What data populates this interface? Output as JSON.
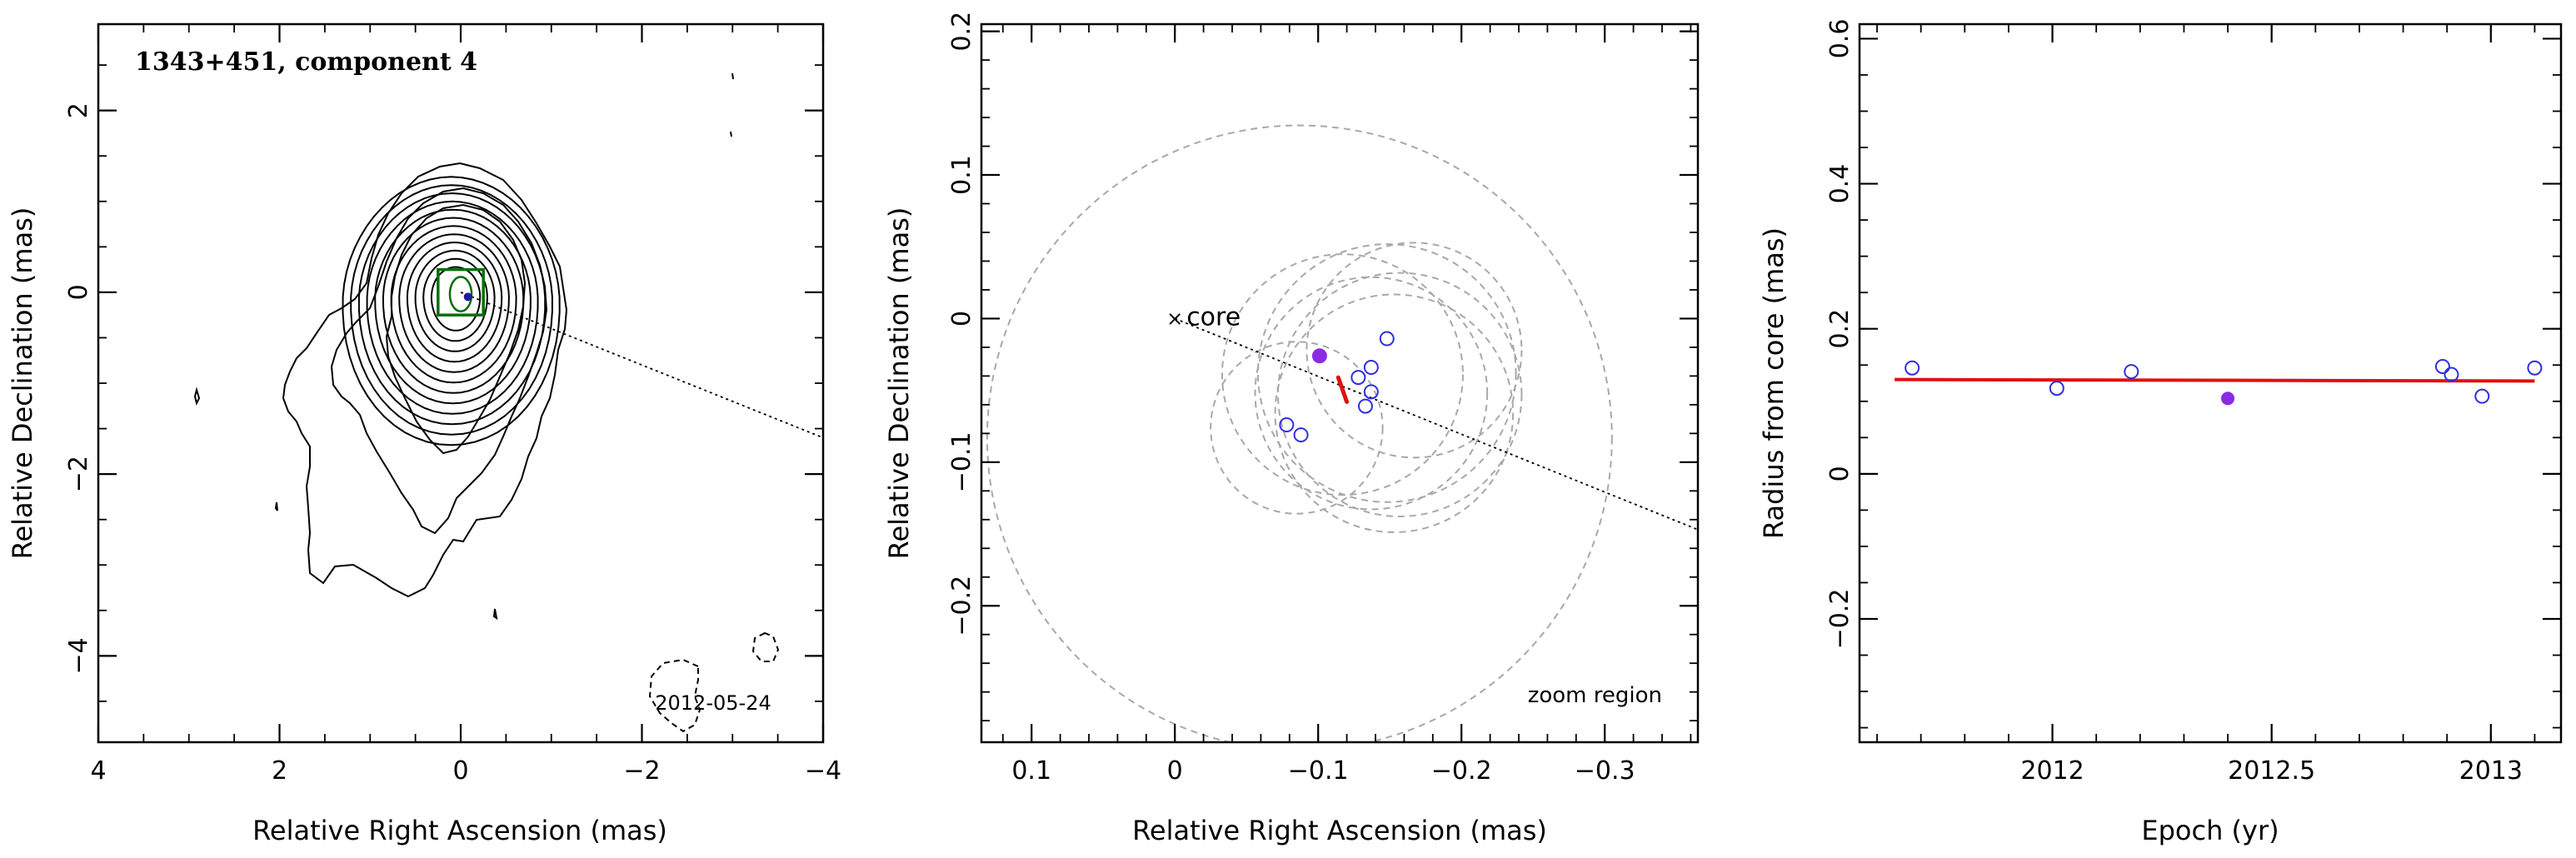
{
  "chart_data": [
    {
      "type": "contour",
      "title": "1343+451, component 4",
      "date_label": "2012-05-24",
      "xlabel": "Relative Right Ascension (mas)",
      "ylabel": "Relative Declination (mas)",
      "xlim": [
        4,
        -4
      ],
      "ylim": [
        -4.95,
        2.95
      ],
      "xticks": [
        4,
        2,
        0,
        -2,
        -4
      ],
      "yticks": [
        2,
        0,
        -2,
        -4
      ],
      "contour_levels": 12,
      "component": {
        "x": -0.08,
        "y": -0.05
      },
      "zoom_box": {
        "x": [
          0.25,
          -0.25
        ],
        "y": [
          0.25,
          -0.25
        ]
      },
      "trajectory_line": {
        "from": [
          0.0,
          0.0
        ],
        "to": [
          -4.0,
          -1.6
        ]
      }
    },
    {
      "type": "scatter",
      "xlabel": "Relative Right Ascension (mas)",
      "ylabel": "Relative Declination (mas)",
      "xlim": [
        0.135,
        -0.365
      ],
      "ylim": [
        -0.295,
        0.205
      ],
      "xticks": [
        0.1,
        0,
        -0.1,
        -0.2,
        -0.3
      ],
      "yticks": [
        0.2,
        0.1,
        0,
        -0.1,
        -0.2
      ],
      "annotation": "zoom region",
      "core_label": "core",
      "core": {
        "x": 0.0,
        "y": 0.0
      },
      "points_open": [
        {
          "x": -0.148,
          "y": -0.014
        },
        {
          "x": -0.137,
          "y": -0.034
        },
        {
          "x": -0.128,
          "y": -0.041
        },
        {
          "x": -0.137,
          "y": -0.051
        },
        {
          "x": -0.133,
          "y": -0.061
        },
        {
          "x": -0.078,
          "y": -0.074
        },
        {
          "x": -0.088,
          "y": -0.081
        }
      ],
      "point_highlight": {
        "x": -0.101,
        "y": -0.026
      },
      "circles": [
        {
          "cx": -0.087,
          "cy": -0.083,
          "r": 0.218
        },
        {
          "cx": -0.117,
          "cy": -0.039,
          "r": 0.084
        },
        {
          "cx": -0.167,
          "cy": -0.022,
          "r": 0.075
        },
        {
          "cx": -0.148,
          "cy": -0.038,
          "r": 0.09
        },
        {
          "cx": -0.157,
          "cy": -0.053,
          "r": 0.085
        },
        {
          "cx": -0.153,
          "cy": -0.066,
          "r": 0.083
        },
        {
          "cx": -0.137,
          "cy": -0.052,
          "r": 0.081
        },
        {
          "cx": -0.085,
          "cy": -0.076,
          "r": 0.06
        }
      ],
      "red_segment": {
        "from": [
          -0.114,
          -0.041
        ],
        "to": [
          -0.12,
          -0.058
        ]
      },
      "trajectory_line": {
        "from": [
          0.0,
          0.0
        ],
        "to": [
          -0.365,
          -0.147
        ]
      }
    },
    {
      "type": "scatter",
      "xlabel": "Epoch (yr)",
      "ylabel": "Radius from core (mas)",
      "xlim": [
        2011.56,
        2013.16
      ],
      "ylim": [
        -0.37,
        0.62
      ],
      "xticks": [
        2012,
        2012.5,
        2013
      ],
      "xtick_labels": [
        "2012",
        "2012.5",
        "2013"
      ],
      "yticks": [
        0.6,
        0.4,
        0.2,
        0,
        -0.2
      ],
      "series": [
        {
          "x": [
            2011.68,
            2012.01,
            2012.18,
            2012.89,
            2012.91,
            2012.98,
            2013.1
          ],
          "y": [
            0.146,
            0.118,
            0.141,
            0.148,
            0.137,
            0.107,
            0.146
          ]
        }
      ],
      "highlight": {
        "x": 2012.4,
        "y": 0.104
      },
      "fit_line": {
        "x": [
          2011.64,
          2013.1
        ],
        "y": [
          0.13,
          0.128
        ]
      }
    }
  ],
  "colors": {
    "axis": "#000000",
    "open_marker": "#2f2fe0",
    "highlight_marker": "#8a2be2",
    "fit": "#e01010",
    "circles": "#a8a8a8",
    "zoom_box": "#0a6e0a",
    "component": "#1c1c9a"
  }
}
